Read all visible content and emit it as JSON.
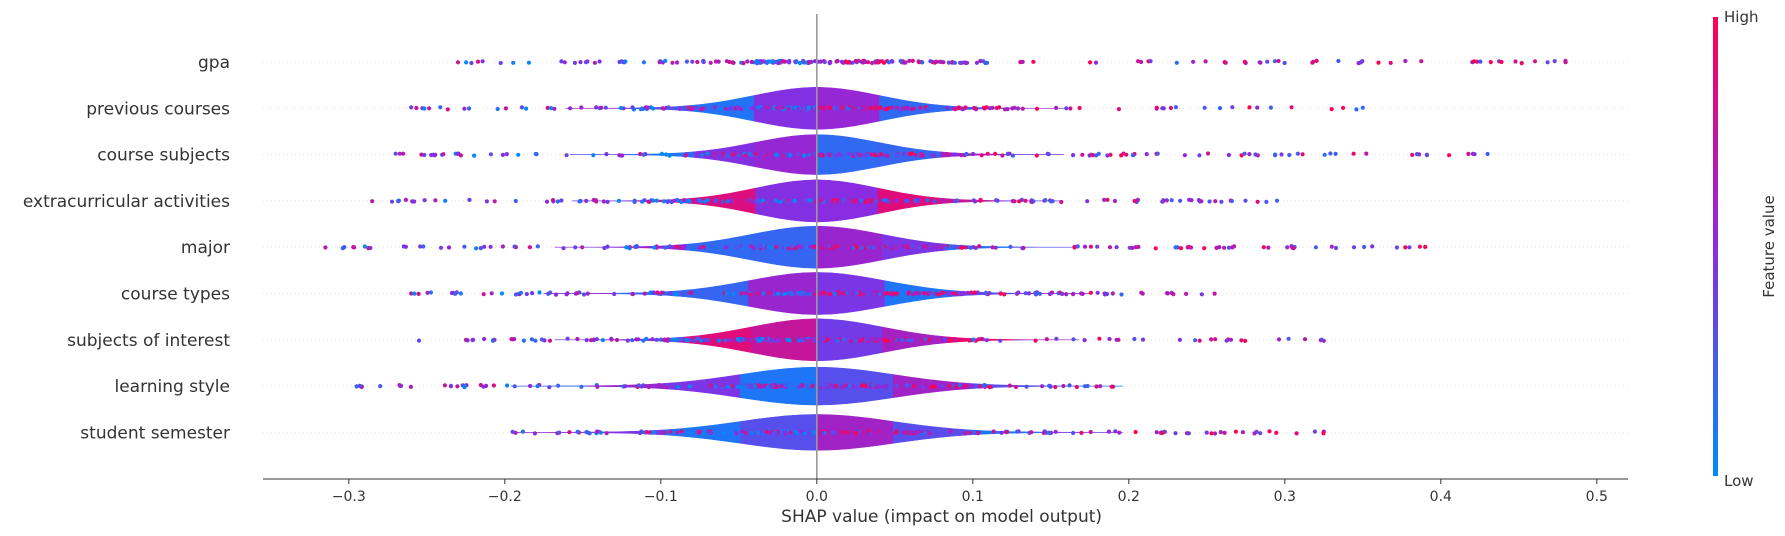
{
  "chart_data": {
    "type": "scatter",
    "subtype": "shap-violin-summary",
    "title": "",
    "xlabel": "SHAP value (impact on model output)",
    "ylabel": "",
    "xlim": [
      -0.355,
      0.52
    ],
    "xticks": [
      -0.3,
      -0.2,
      -0.1,
      0.0,
      0.1,
      0.2,
      0.3,
      0.4,
      0.5
    ],
    "xtick_labels": [
      "−0.3",
      "−0.2",
      "−0.1",
      "0.0",
      "0.1",
      "0.2",
      "0.3",
      "0.4",
      "0.5"
    ],
    "grid": false,
    "features": [
      {
        "name": "gpa",
        "range": [
          -0.23,
          0.48
        ],
        "width": [
          0.01,
          0.01,
          0.01
        ]
      },
      {
        "name": "previous courses",
        "range": [
          -0.26,
          0.35
        ],
        "width": [
          0.03,
          0.35,
          1.0
        ]
      },
      {
        "name": "course subjects",
        "range": [
          -0.27,
          0.43
        ],
        "width": [
          0.03,
          0.33,
          0.95
        ]
      },
      {
        "name": "extracurricular activities",
        "range": [
          -0.285,
          0.295
        ],
        "width": [
          0.03,
          0.32,
          1.0
        ]
      },
      {
        "name": "major",
        "range": [
          -0.315,
          0.39
        ],
        "width": [
          0.03,
          0.4,
          1.0
        ]
      },
      {
        "name": "course types",
        "range": [
          -0.26,
          0.255
        ],
        "width": [
          0.04,
          0.45,
          1.0
        ]
      },
      {
        "name": "subjects of interest",
        "range": [
          -0.255,
          0.325
        ],
        "width": [
          0.03,
          0.4,
          1.0
        ]
      },
      {
        "name": "learning style",
        "range": [
          -0.295,
          0.19
        ],
        "width": [
          0.05,
          0.6,
          0.9
        ]
      },
      {
        "name": "student semester",
        "range": [
          -0.195,
          0.325
        ],
        "width": [
          0.05,
          0.6,
          0.85
        ]
      }
    ],
    "colorbar": {
      "title": "Feature value",
      "high_label": "High",
      "low_label": "Low",
      "low_color": "#008bfb",
      "high_color": "#ff0052"
    },
    "colors": {
      "zero_line": "#999999",
      "row_guide": "#dddddd",
      "axis": "#333333"
    }
  }
}
